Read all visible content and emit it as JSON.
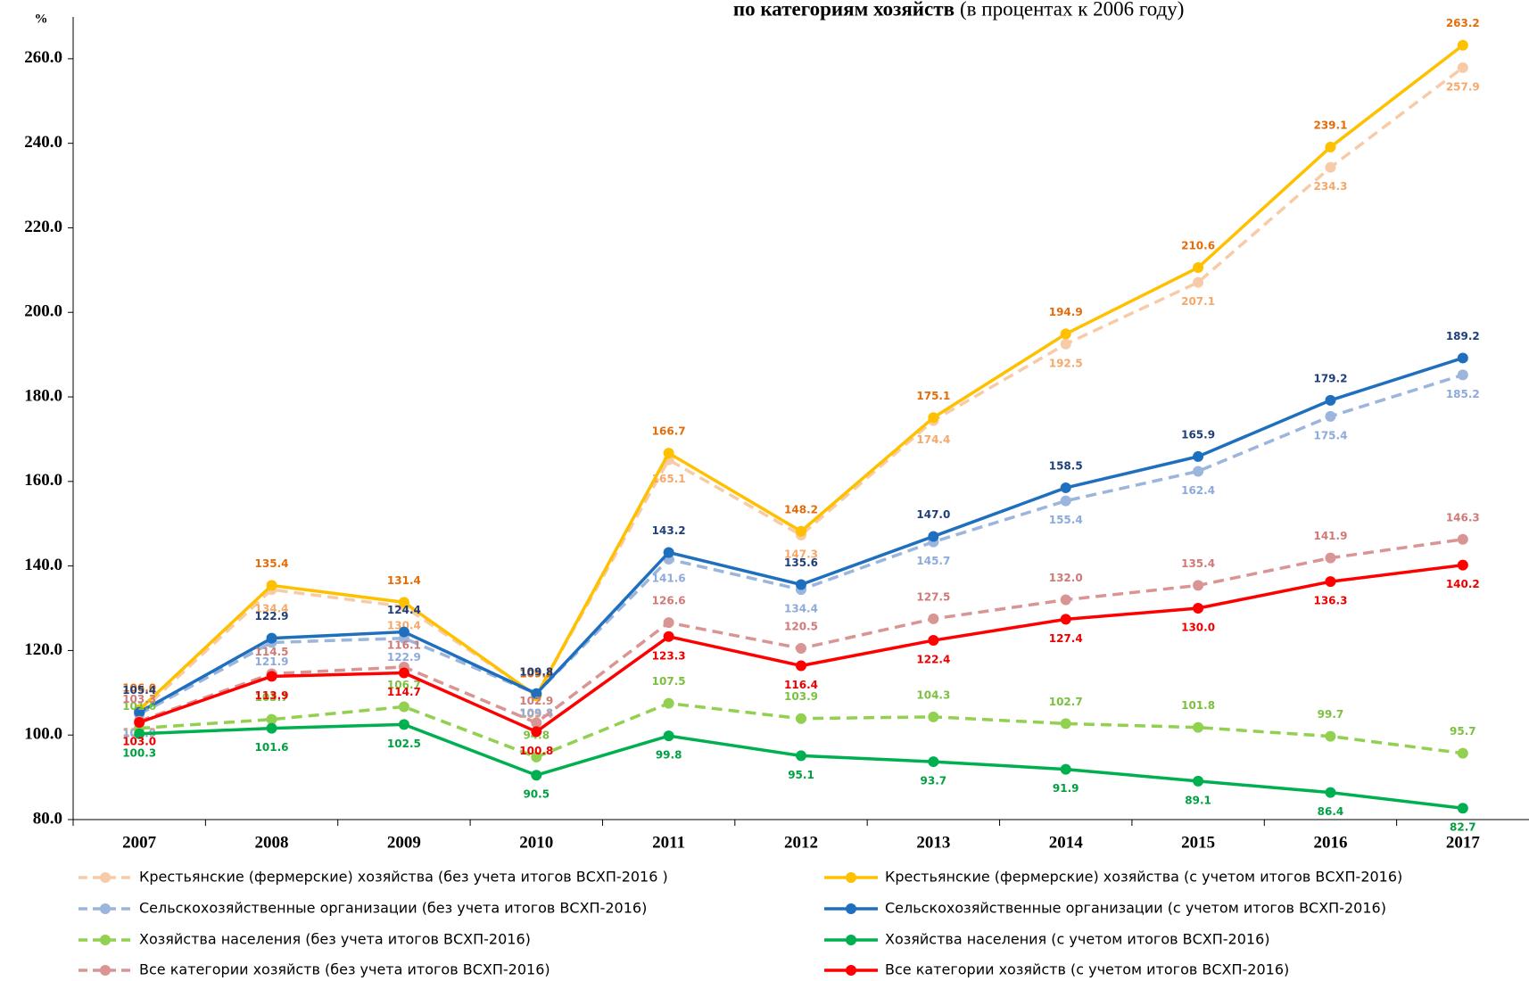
{
  "chart_data": {
    "type": "line",
    "title": "по категориям хозяйств",
    "subtitle": "(в процентах к 2006 году)",
    "ylabel": "%",
    "categories": [
      "2007",
      "2008",
      "2009",
      "2010",
      "2011",
      "2012",
      "2013",
      "2014",
      "2015",
      "2016",
      "2017"
    ],
    "ylim": [
      80,
      272
    ],
    "yticks": [
      {
        "value": 80,
        "label": "80.0"
      },
      {
        "value": 100,
        "label": "100.0"
      },
      {
        "value": 120,
        "label": "120.0"
      },
      {
        "value": 140,
        "label": "140.0"
      },
      {
        "value": 160,
        "label": "160.0"
      },
      {
        "value": 180,
        "label": "180.0"
      },
      {
        "value": 200,
        "label": "200.0"
      },
      {
        "value": 220,
        "label": "220.0"
      },
      {
        "value": 240,
        "label": "240.0"
      },
      {
        "value": 260,
        "label": "260.0"
      }
    ],
    "series": [
      {
        "name": "Крестьянские (фермерские) хозяйства (без учета итогов ВСХП-2016 )",
        "color": "#f8cba8",
        "label_color": "#f5a86a",
        "dash": true,
        "label_position": "below",
        "values": [
          105.2,
          134.4,
          130.4,
          109.4,
          165.1,
          147.3,
          174.4,
          192.5,
          207.1,
          234.3,
          257.9
        ],
        "value_labels": [
          "105.2",
          "134.4",
          "130.4",
          "109.4",
          "165.1",
          "147.3",
          "174.4",
          "192.5",
          "207.1",
          "234.3",
          "257.9"
        ]
      },
      {
        "name": "Крестьянские (фермерские) хозяйства (с учетом итогов ВСХП-2016)",
        "color": "#ffc000",
        "label_color": "#e46c0a",
        "dash": false,
        "label_position": "above",
        "values": [
          106.0,
          135.4,
          131.4,
          109.3,
          166.7,
          148.2,
          175.1,
          194.9,
          210.6,
          239.1,
          263.2
        ],
        "value_labels": [
          "106.0",
          "135.4",
          "131.4",
          "109.3",
          "166.7",
          "148.2",
          "175.1",
          "194.9",
          "210.6",
          "239.1",
          "263.2"
        ]
      },
      {
        "name": "Сельскохозяйственные организации (без учета итогов ВСХП-2016)",
        "color": "#9bb5dc",
        "label_color": "#8eaadb",
        "dash": true,
        "label_position": "below",
        "values": [
          104.9,
          121.9,
          122.9,
          109.8,
          141.6,
          134.4,
          145.7,
          155.4,
          162.4,
          175.4,
          185.2
        ],
        "value_labels": [
          "104.9",
          "121.9",
          "122.9",
          "109.8",
          "141.6",
          "134.4",
          "145.7",
          "155.4",
          "162.4",
          "175.4",
          "185.2"
        ]
      },
      {
        "name": "Сельскохозяйственные организации (с учетом итогов ВСХП-2016)",
        "color": "#1f6fbf",
        "label_color": "#1f3f7a",
        "dash": false,
        "label_position": "above",
        "values": [
          105.4,
          122.9,
          124.4,
          109.8,
          143.2,
          135.6,
          147.0,
          158.5,
          165.9,
          179.2,
          189.2
        ],
        "value_labels": [
          "105.4",
          "122.9",
          "124.4",
          "109.8",
          "143.2",
          "135.6",
          "147.0",
          "158.5",
          "165.9",
          "179.2",
          "189.2"
        ]
      },
      {
        "name": "Хозяйства населения (без учета итогов ВСХП-2016)",
        "color": "#92d050",
        "label_color": "#7cc040",
        "dash": true,
        "label_position": "above",
        "values": [
          101.6,
          103.7,
          106.7,
          94.8,
          107.5,
          103.9,
          104.3,
          102.7,
          101.8,
          99.7,
          95.7
        ],
        "value_labels": [
          "101.6",
          "103.7",
          "106.7",
          "94.8",
          "107.5",
          "103.9",
          "104.3",
          "102.7",
          "101.8",
          "99.7",
          "95.7"
        ]
      },
      {
        "name": "Хозяйства населения (с учетом итогов ВСХП-2016)",
        "color": "#00b050",
        "label_color": "#00a040",
        "dash": false,
        "label_position": "below",
        "values": [
          100.3,
          101.6,
          102.5,
          90.5,
          99.8,
          95.1,
          93.7,
          91.9,
          89.1,
          86.4,
          82.7
        ],
        "value_labels": [
          "100.3",
          "101.6",
          "102.5",
          "90.5",
          "99.8",
          "95.1",
          "93.7",
          "91.9",
          "89.1",
          "86.4",
          "82.7"
        ]
      },
      {
        "name": "Все категории хозяйств (без учета итогов ВСХП-2016)",
        "color": "#d99594",
        "label_color": "#d07a78",
        "dash": true,
        "label_position": "above",
        "values": [
          103.3,
          114.5,
          116.1,
          102.9,
          126.6,
          120.5,
          127.5,
          132.0,
          135.4,
          141.9,
          146.3
        ],
        "value_labels": [
          "103.3",
          "114.5",
          "116.1",
          "102.9",
          "126.6",
          "120.5",
          "127.5",
          "132.0",
          "135.4",
          "141.9",
          "146.3"
        ]
      },
      {
        "name": "Все категории хозяйств (с учетом итогов ВСХП-2016)",
        "color": "#ff0000",
        "label_color": "#ee0000",
        "dash": false,
        "label_position": "below",
        "values": [
          103.0,
          113.9,
          114.7,
          100.8,
          123.3,
          116.4,
          122.4,
          127.4,
          130.0,
          136.3,
          140.2
        ],
        "value_labels": [
          "103.0",
          "113.9",
          "114.7",
          "100.8",
          "123.3",
          "116.4",
          "122.4",
          "127.4",
          "130.0",
          "136.3",
          "140.2"
        ]
      }
    ]
  }
}
